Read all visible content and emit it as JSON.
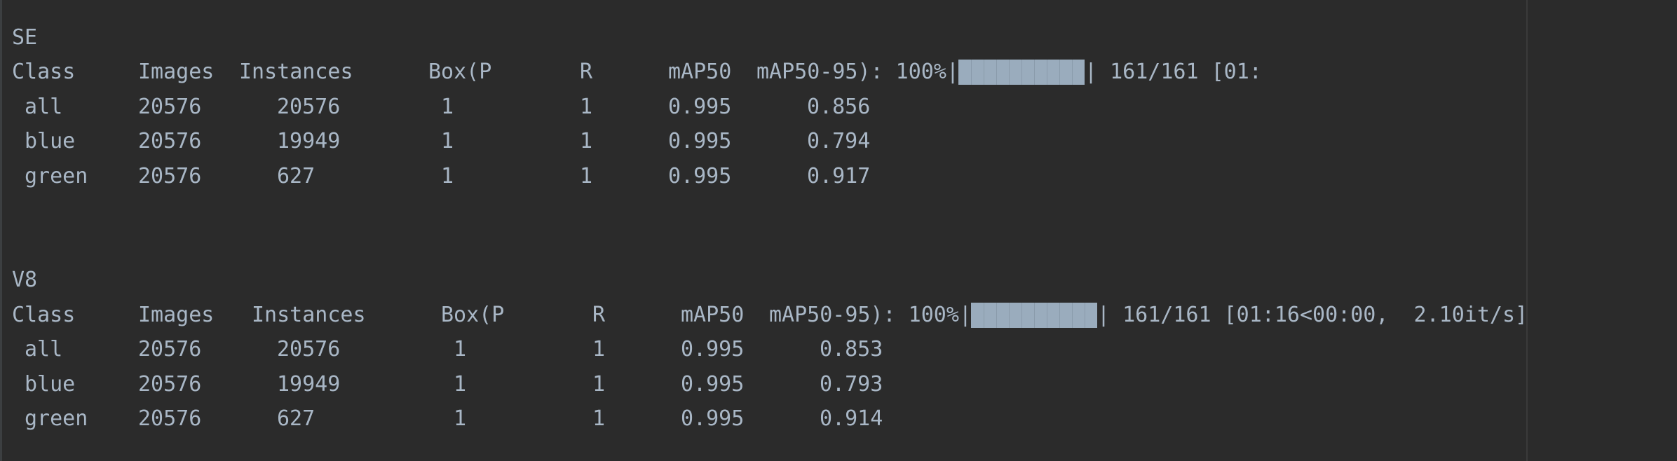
{
  "colors": {
    "background": "#2b2b2b",
    "text": "#a9b7c6",
    "progress_fill": "#9aacbd"
  },
  "sections": [
    {
      "label": "SE",
      "header": {
        "class": "Class",
        "images": "Images",
        "instances": "Instances",
        "box_p": "Box(P",
        "r": "R",
        "map50": "mAP50",
        "map5095_progress": "mAP50-95): 100%|",
        "progress_end": "| 161/161 [01:"
      },
      "progress_value": 1.0,
      "rows": [
        {
          "cls": "all",
          "images": "20576",
          "instances": "20576",
          "p": "1",
          "r": "1",
          "map50": "0.995",
          "map5095": "0.856"
        },
        {
          "cls": "blue",
          "images": "20576",
          "instances": "19949",
          "p": "1",
          "r": "1",
          "map50": "0.995",
          "map5095": "0.794"
        },
        {
          "cls": "green",
          "images": "20576",
          "instances": "627",
          "p": "1",
          "r": "1",
          "map50": "0.995",
          "map5095": "0.917"
        }
      ]
    },
    {
      "label": "V8",
      "header": {
        "class": "Class",
        "images": "Images",
        "instances": "Instances",
        "box_p": "Box(P",
        "r": "R",
        "map50": "mAP50",
        "map5095_progress": "mAP50-95): 100%|",
        "progress_end": "| 161/161 [01:16<00:00,  2.10it/s]"
      },
      "progress_value": 1.0,
      "rows": [
        {
          "cls": "all",
          "images": "20576",
          "instances": "20576",
          "p": "1",
          "r": "1",
          "map50": "0.995",
          "map5095": "0.853"
        },
        {
          "cls": "blue",
          "images": "20576",
          "instances": "19949",
          "p": "1",
          "r": "1",
          "map50": "0.995",
          "map5095": "0.793"
        },
        {
          "cls": "green",
          "images": "20576",
          "instances": "627",
          "p": "1",
          "r": "1",
          "map50": "0.995",
          "map5095": "0.914"
        }
      ]
    }
  ]
}
